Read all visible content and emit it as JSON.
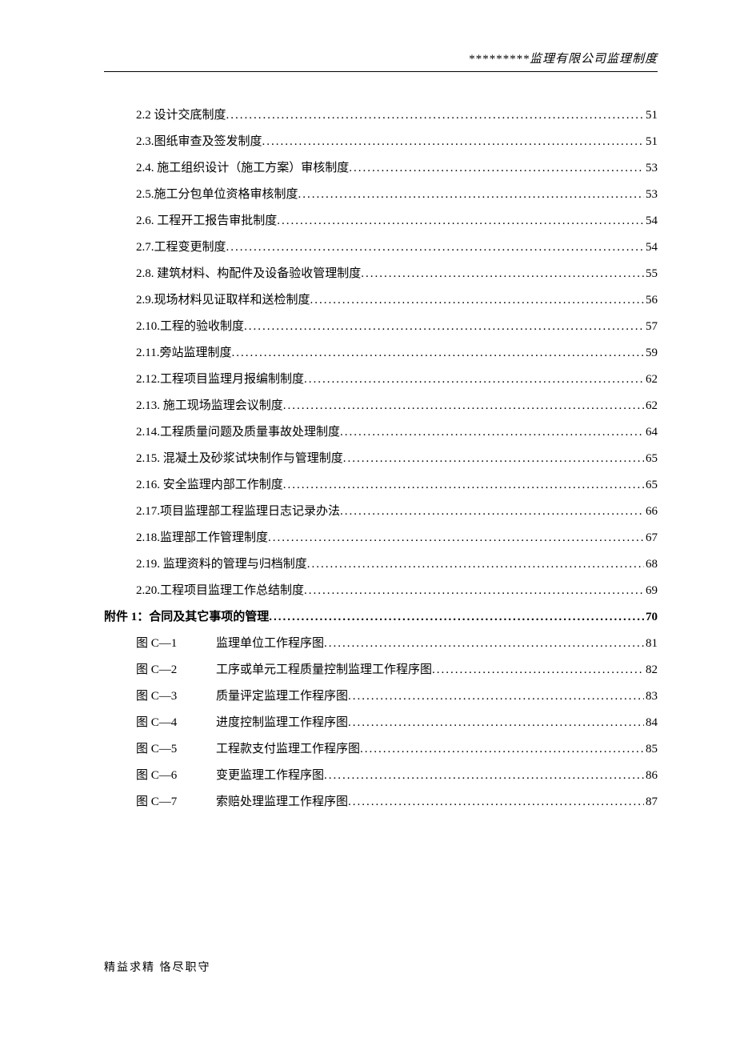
{
  "header": "*********监理有限公司监理制度",
  "footer": "精益求精  恪尽职守",
  "toc": [
    {
      "indent": "indent-1",
      "label": "2.2   设计交底制度",
      "page": "51",
      "bold": false
    },
    {
      "indent": "indent-1",
      "label": "2.3.图纸审查及签发制度",
      "page": "51",
      "bold": false
    },
    {
      "indent": "indent-1",
      "label": "2.4.  施工组织设计（施工方案）审核制度",
      "page": "53",
      "bold": false
    },
    {
      "indent": "indent-1",
      "label": "2.5.施工分包单位资格审核制度",
      "page": "53",
      "bold": false
    },
    {
      "indent": "indent-1",
      "label": "2.6.  工程开工报告审批制度",
      "page": "54",
      "bold": false
    },
    {
      "indent": "indent-1",
      "label": "2.7.工程变更制度",
      "page": "54",
      "bold": false
    },
    {
      "indent": "indent-1",
      "label": "2.8.  建筑材料、构配件及设备验收管理制度",
      "page": "55",
      "bold": false
    },
    {
      "indent": "indent-1",
      "label": "2.9.现场材料见证取样和送检制度",
      "page": "56",
      "bold": false
    },
    {
      "indent": "indent-1",
      "label": "2.10.工程的验收制度",
      "page": "57",
      "bold": false
    },
    {
      "indent": "indent-1",
      "label": "2.11.旁站监理制度",
      "page": "59",
      "bold": false
    },
    {
      "indent": "indent-1",
      "label": "2.12.工程项目监理月报编制制度",
      "page": "62",
      "bold": false
    },
    {
      "indent": "indent-1",
      "label": "2.13.  施工现场监理会议制度",
      "page": "62",
      "bold": false
    },
    {
      "indent": "indent-1",
      "label": "2.14.工程质量问题及质量事故处理制度",
      "page": "64",
      "bold": false
    },
    {
      "indent": "indent-1",
      "label": "2.15.  混凝土及砂浆试块制作与管理制度",
      "page": "65",
      "bold": false
    },
    {
      "indent": "indent-1",
      "label": "2.16.  安全监理内部工作制度",
      "page": "65",
      "bold": false
    },
    {
      "indent": "indent-1",
      "label": "2.17.项目监理部工程监理日志记录办法",
      "page": "66",
      "bold": false
    },
    {
      "indent": "indent-1",
      "label": "2.18.监理部工作管理制度",
      "page": "67",
      "bold": false
    },
    {
      "indent": "indent-1",
      "label": "2.19.  监理资料的管理与归档制度",
      "page": "68",
      "bold": false
    },
    {
      "indent": "indent-1",
      "label": "2.20.工程项目监理工作总结制度",
      "page": "69",
      "bold": false
    },
    {
      "indent": "indent-0",
      "label": "附件 1：合同及其它事项的管理",
      "page": "70",
      "bold": true
    },
    {
      "indent": "indent-fig",
      "fig": "图 C—1",
      "label": "监理单位工作程序图",
      "page": "81",
      "bold": false
    },
    {
      "indent": "indent-fig",
      "fig": "图 C—2",
      "label": "工序或单元工程质量控制监理工作程序图",
      "page": "82",
      "bold": false
    },
    {
      "indent": "indent-fig",
      "fig": "图 C—3",
      "label": "质量评定监理工作程序图",
      "page": "83",
      "bold": false
    },
    {
      "indent": "indent-fig",
      "fig": "图 C—4",
      "label": "进度控制监理工作程序图",
      "page": "84",
      "bold": false
    },
    {
      "indent": "indent-fig",
      "fig": "图 C—5",
      "label": "工程款支付监理工作程序图",
      "page": "85",
      "bold": false
    },
    {
      "indent": "indent-fig",
      "fig": "图 C—6",
      "label": "变更监理工作程序图",
      "page": "86",
      "bold": false
    },
    {
      "indent": "indent-fig",
      "fig": "图 C—7",
      "label": "索赔处理监理工作程序图",
      "page": "87",
      "bold": false
    }
  ]
}
